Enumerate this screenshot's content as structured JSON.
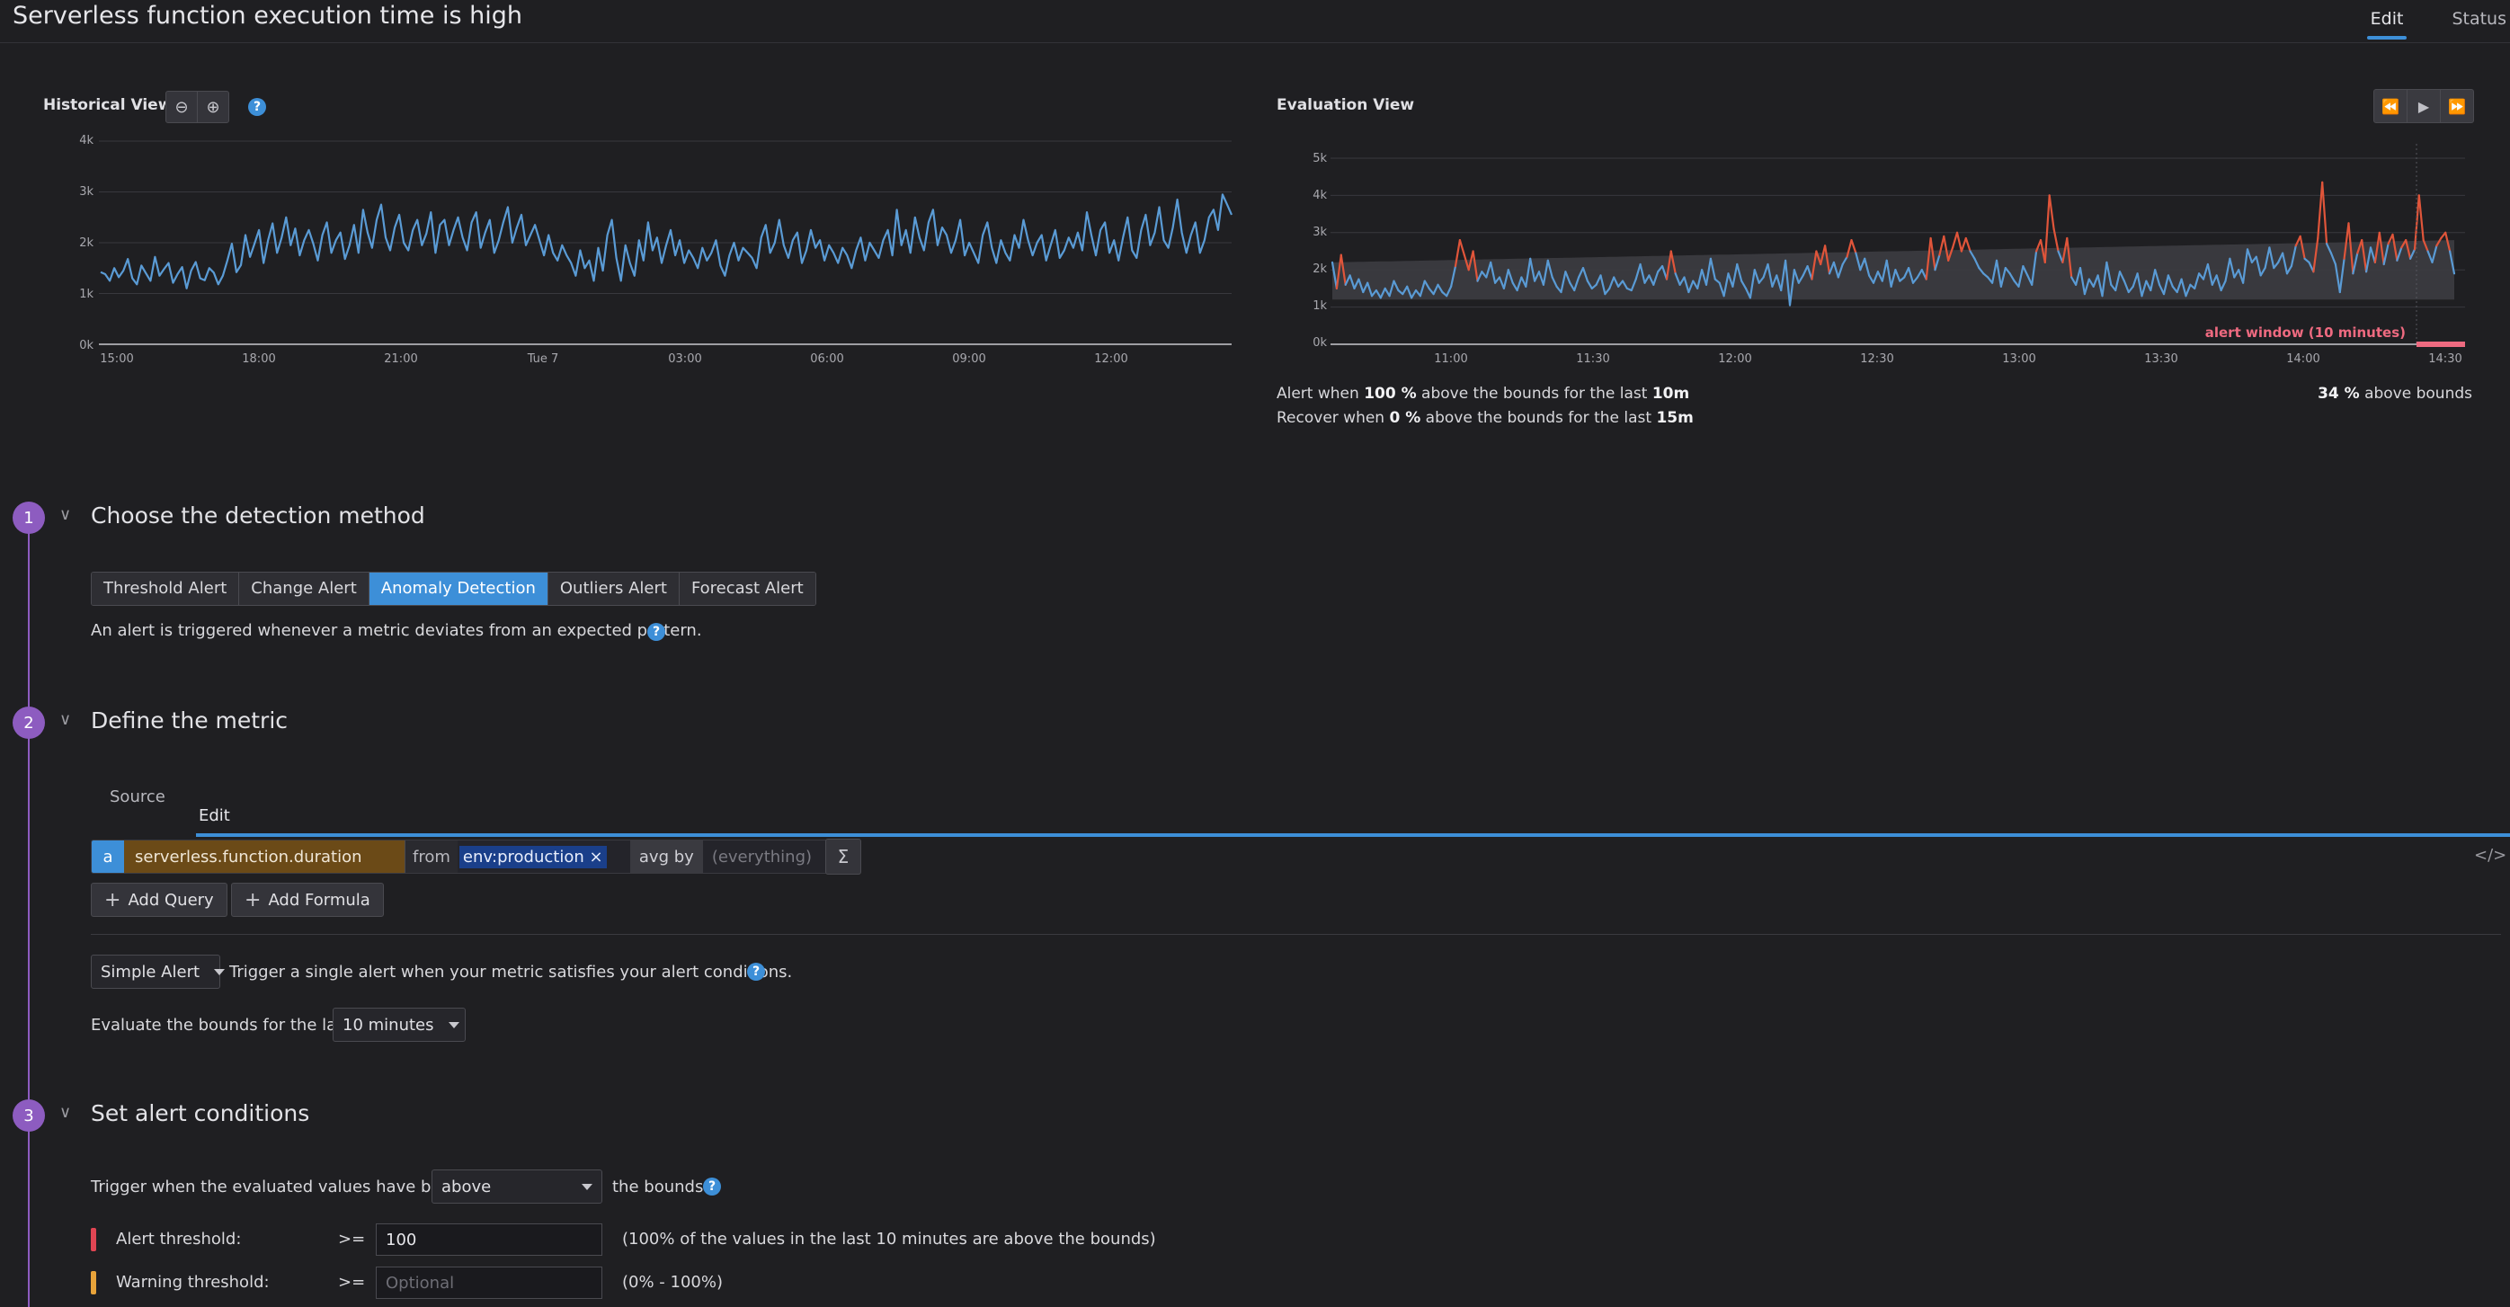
{
  "header": {
    "title": "Serverless function execution time is high",
    "tabs": [
      {
        "label": "Edit",
        "active": true
      },
      {
        "label": "Status",
        "active": false
      }
    ]
  },
  "historical": {
    "label": "Historical View",
    "y_ticks": [
      "4k",
      "3k",
      "2k",
      "1k",
      "0k"
    ],
    "x_ticks": [
      "15:00",
      "18:00",
      "21:00",
      "Tue 7",
      "03:00",
      "06:00",
      "09:00",
      "12:00"
    ]
  },
  "evaluation": {
    "label": "Evaluation View",
    "y_ticks": [
      "5k",
      "4k",
      "3k",
      "2k",
      "1k",
      "0k"
    ],
    "x_ticks": [
      "11:00",
      "11:30",
      "12:00",
      "12:30",
      "13:00",
      "13:30",
      "14:00",
      "14:30"
    ],
    "alert_window_label": "alert window (10 minutes)",
    "alert_line": {
      "pre": "Alert when ",
      "pct": "100 %",
      "mid": " above the bounds for the last ",
      "dur": "10m"
    },
    "recover_line": {
      "pre": "Recover when ",
      "pct": "0 %",
      "mid": " above the bounds for the last ",
      "dur": "15m"
    },
    "above_bounds": {
      "pct": "34 %",
      "suffix": " above bounds"
    }
  },
  "chart_data": [
    {
      "type": "line",
      "name": "historical",
      "x_range": [
        "15:00",
        "12:00+"
      ],
      "ylim": [
        0,
        4000
      ],
      "y_ticks": [
        0,
        1000,
        2000,
        3000,
        4000
      ],
      "series": [
        {
          "values": [
            1420,
            1380,
            1250,
            1500,
            1320,
            1450,
            1680,
            1300,
            1180,
            1550,
            1400,
            1250,
            1720,
            1350,
            1480,
            1600,
            1210,
            1380,
            1520,
            1100,
            1450,
            1620,
            1300,
            1260,
            1500,
            1410,
            1180,
            1350,
            1650,
            1980,
            1420,
            1560,
            2150,
            1720,
            1980,
            2250,
            1600,
            2050,
            2380,
            1800,
            2100,
            2500,
            1950,
            2280,
            1750,
            2050,
            2250,
            1980,
            1650,
            2150,
            2400,
            1800,
            2050,
            2200,
            1680,
            1950,
            2350,
            1800,
            2650,
            2200,
            1900,
            2450,
            2750,
            2100,
            1850,
            2300,
            2550,
            2000,
            1850,
            2250,
            2450,
            1950,
            2180,
            2600,
            1800,
            2350,
            2450,
            1950,
            2250,
            2500,
            2100,
            1850,
            2400,
            2600,
            1900,
            2200,
            2450,
            1800,
            2050,
            2400,
            2700,
            2000,
            2300,
            2550,
            1950,
            2150,
            2350,
            2050,
            1750,
            2150,
            1800,
            1650,
            1950,
            1750,
            1600,
            1350,
            1850,
            1500,
            1650,
            1250,
            1900,
            1450,
            2150,
            2450,
            1700,
            1250,
            1950,
            1600,
            1350,
            2050,
            1650,
            2400,
            1850,
            2100,
            1600,
            1950,
            2250,
            1750,
            2050,
            1600,
            1850,
            1700,
            1500,
            1900,
            1650,
            1800,
            2050,
            1550,
            1350,
            1750,
            2000,
            1650,
            1900,
            1800,
            1700,
            1500,
            2100,
            2350,
            1800,
            2000,
            2450,
            1950,
            1700,
            2050,
            2200,
            1600,
            1850,
            2250,
            1900,
            2050,
            1650,
            1950,
            1800,
            1600,
            1900,
            1750,
            1500,
            1850,
            2100,
            1650,
            2000,
            1850,
            1700,
            2050,
            2250,
            1750,
            2650,
            1950,
            2250,
            1800,
            2500,
            2100,
            1850,
            2400,
            2650,
            1950,
            2300,
            2150,
            1800,
            2050,
            2450,
            1750,
            2000,
            1800,
            1600,
            2150,
            2400,
            1900,
            1600,
            2050,
            1800,
            1650,
            2150,
            1900,
            2450,
            2050,
            1750,
            2000,
            2150,
            1650,
            1950,
            2250,
            1700,
            1850,
            2100,
            1900,
            2200,
            1850,
            2600,
            2150,
            1750,
            2250,
            2400,
            1800,
            2050,
            1650,
            2100,
            2500,
            1850,
            1700,
            2250,
            2550,
            1950,
            2200,
            2700,
            2050,
            1900,
            2300,
            2850,
            2200,
            1800,
            2150,
            2400,
            1800,
            2050,
            2500,
            2650,
            2250,
            2950,
            2750,
            2550
          ]
        }
      ]
    },
    {
      "type": "line",
      "name": "evaluation",
      "x_range": [
        "10:45",
        "14:32"
      ],
      "ylim": [
        0,
        5000
      ],
      "y_ticks": [
        0,
        1000,
        2000,
        3000,
        4000,
        5000
      ],
      "bounds": {
        "lower": 1200,
        "upper_start": 2200,
        "upper_end": 2800
      },
      "series": [
        {
          "values": [
            2200,
            1500,
            2400,
            1600,
            1850,
            1500,
            1750,
            1400,
            1650,
            1300,
            1450,
            1250,
            1500,
            1300,
            1700,
            1450,
            1350,
            1550,
            1250,
            1450,
            1300,
            1700,
            1500,
            1350,
            1600,
            1400,
            1300,
            1550,
            2100,
            2800,
            2400,
            2000,
            2500,
            1700,
            1950,
            1800,
            2200,
            1650,
            1800,
            1500,
            2000,
            1650,
            1450,
            1800,
            1550,
            2300,
            1700,
            1950,
            1600,
            2250,
            1800,
            1550,
            1400,
            1950,
            1650,
            1450,
            1800,
            2050,
            1700,
            1500,
            1600,
            1850,
            1350,
            1500,
            1800,
            1550,
            1700,
            1500,
            1450,
            1750,
            2150,
            1650,
            1850,
            1600,
            1950,
            2100,
            1750,
            2500,
            1900,
            1600,
            1800,
            1400,
            1700,
            1500,
            2000,
            1600,
            2300,
            1750,
            1650,
            1300,
            1900,
            1550,
            2150,
            1700,
            1500,
            1250,
            2000,
            1650,
            1800,
            2150,
            1550,
            1850,
            1450,
            2250,
            1050,
            2000,
            1650,
            1850,
            2100,
            1750,
            2500,
            2150,
            2650,
            1900,
            2200,
            1800,
            2150,
            2350,
            2800,
            2450,
            2000,
            2300,
            1850,
            1650,
            1950,
            1700,
            2250,
            1550,
            2000,
            1700,
            1800,
            2050,
            1650,
            1800,
            2000,
            1750,
            2850,
            2000,
            2400,
            2900,
            2250,
            2600,
            3000,
            2500,
            2850,
            2500,
            2300,
            2050,
            1900,
            1800,
            1650,
            2250,
            1550,
            2050,
            1900,
            1700,
            1550,
            2100,
            1850,
            1600,
            2500,
            2800,
            2200,
            4000,
            3100,
            2500,
            2200,
            2850,
            1800,
            1600,
            2050,
            1350,
            1750,
            1550,
            1850,
            1300,
            2200,
            1600,
            1450,
            1950,
            1700,
            1400,
            1550,
            1900,
            1300,
            1700,
            1450,
            2000,
            1600,
            1350,
            1850,
            1550,
            1400,
            1750,
            1300,
            1600,
            1500,
            1900,
            1750,
            2150,
            1600,
            1850,
            1450,
            1700,
            2300,
            1800,
            2000,
            1650,
            2550,
            2200,
            2350,
            1850,
            2050,
            2600,
            2050,
            2200,
            2450,
            1900,
            2100,
            2650,
            2900,
            2300,
            2200,
            1950,
            2850,
            4350,
            2700,
            2450,
            2150,
            1400,
            2300,
            3250,
            1900,
            2450,
            2800,
            1950,
            2600,
            2200,
            3000,
            2150,
            2700,
            2950,
            2250,
            2600,
            2800,
            2300,
            2550,
            4000,
            2800,
            2500,
            2200,
            2650,
            2850,
            3000,
            2500,
            1900
          ]
        }
      ]
    }
  ],
  "step1": {
    "num": "1",
    "title": "Choose the detection method",
    "methods": [
      {
        "label": "Threshold Alert",
        "active": false
      },
      {
        "label": "Change Alert",
        "active": false
      },
      {
        "label": "Anomaly Detection",
        "active": true
      },
      {
        "label": "Outliers Alert",
        "active": false
      },
      {
        "label": "Forecast Alert",
        "active": false
      }
    ],
    "description": "An alert is triggered whenever a metric deviates from an expected pattern."
  },
  "step2": {
    "num": "2",
    "title": "Define the metric",
    "tabs": [
      {
        "label": "Source",
        "active": false
      },
      {
        "label": "Edit",
        "active": true
      }
    ],
    "query": {
      "letter": "a",
      "metric": "serverless.function.duration",
      "from_label": "from",
      "tag": "env:production ×",
      "avg_by_label": "avg by",
      "everything_placeholder": "(everything)"
    },
    "add_query": "Add Query",
    "add_formula": "Add Formula",
    "alert_type": "Simple Alert",
    "alert_type_desc": "Trigger a single alert when your metric satisfies your alert conditions.",
    "evaluate_label": "Evaluate the bounds for the last",
    "evaluate_value": "10 minutes"
  },
  "step3": {
    "num": "3",
    "title": "Set alert conditions",
    "trigger_pre": "Trigger when the evaluated values have been",
    "trigger_value": "above",
    "trigger_post": "the bounds",
    "alert_threshold": {
      "label": "Alert threshold:",
      "op": ">=",
      "value": "100",
      "note": "(100% of the values in the last 10 minutes are above the bounds)",
      "color": "#e04553"
    },
    "warning_threshold": {
      "label": "Warning threshold:",
      "op": ">=",
      "placeholder": "Optional",
      "note": "(0% - 100%)",
      "color": "#e8a33a"
    }
  },
  "colors": {
    "accent": "#3d8fd8",
    "step": "#8d5cc0",
    "series": "#5a9bd5",
    "anomaly": "#e0553a",
    "alert_window": "#ee6a80"
  }
}
